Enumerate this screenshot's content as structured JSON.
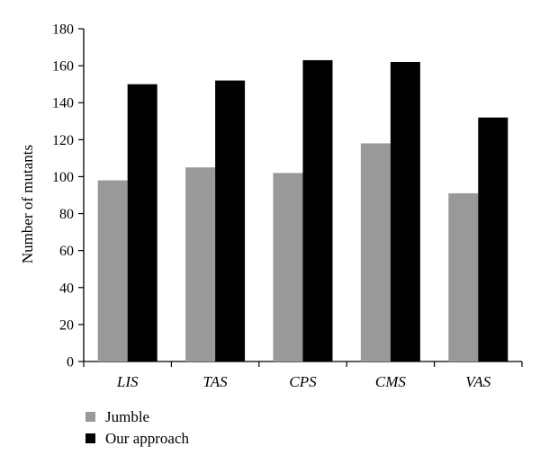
{
  "chart_data": {
    "type": "bar",
    "categories": [
      "LIS",
      "TAS",
      "CPS",
      "CMS",
      "VAS"
    ],
    "series": [
      {
        "name": "Jumble",
        "color": "#999999",
        "values": [
          98,
          105,
          102,
          118,
          91
        ]
      },
      {
        "name": "Our approach",
        "color": "#000000",
        "values": [
          150,
          152,
          163,
          162,
          132
        ]
      }
    ],
    "title": "",
    "xlabel": "",
    "ylabel": "Number of mutants",
    "ylim": [
      0,
      180
    ],
    "yticks": [
      0,
      20,
      40,
      60,
      80,
      100,
      120,
      140,
      160,
      180
    ],
    "grid": false,
    "legend_position": "bottom-left"
  }
}
